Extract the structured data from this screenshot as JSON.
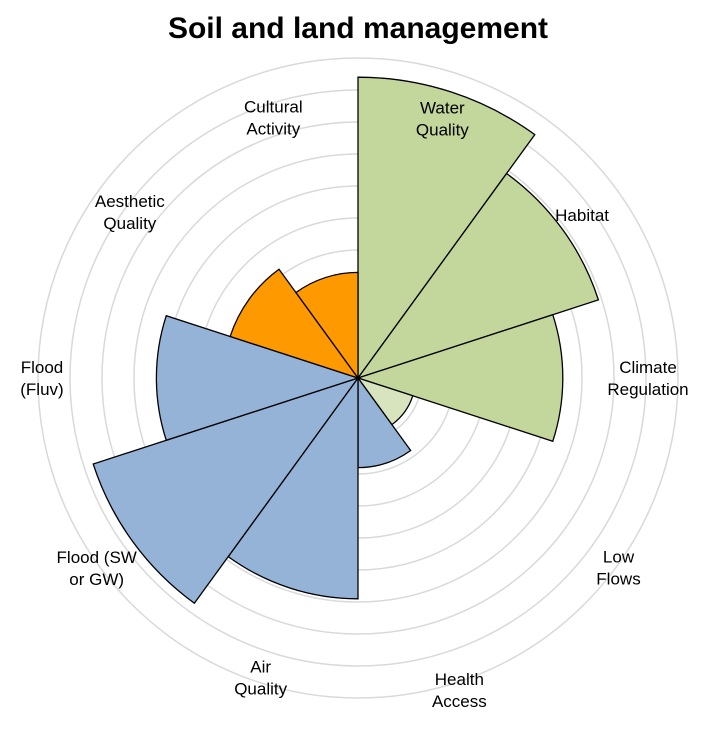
{
  "chart_data": {
    "type": "polar_area",
    "title": "Soil and land management",
    "categories": [
      [
        "Water",
        "Quality"
      ],
      [
        "Habitat"
      ],
      [
        "Climate",
        "Regulation"
      ],
      [
        "Low",
        "Flows"
      ],
      [
        "Health",
        "Access"
      ],
      [
        "Air",
        "Quality"
      ],
      [
        "Flood (SW",
        "or GW)"
      ],
      [
        "Flood",
        "(Fluv)"
      ],
      [
        "Aesthetic",
        "Quality"
      ],
      [
        "Cultural",
        "Activity"
      ]
    ],
    "values": [
      9.4,
      7.9,
      6.4,
      1.8,
      2.8,
      6.9,
      8.7,
      6.3,
      4.2,
      3.3
    ],
    "colors": [
      "#c3d69b",
      "#c3d69b",
      "#c3d69b",
      "#d7e4bd",
      "#95b3d7",
      "#95b3d7",
      "#95b3d7",
      "#95b3d7",
      "#ff9900",
      "#ff9900"
    ],
    "rlim": [
      0,
      10
    ],
    "rticks": [
      1,
      2,
      3,
      4,
      5,
      6,
      7,
      8,
      9,
      10
    ],
    "grid": true
  }
}
